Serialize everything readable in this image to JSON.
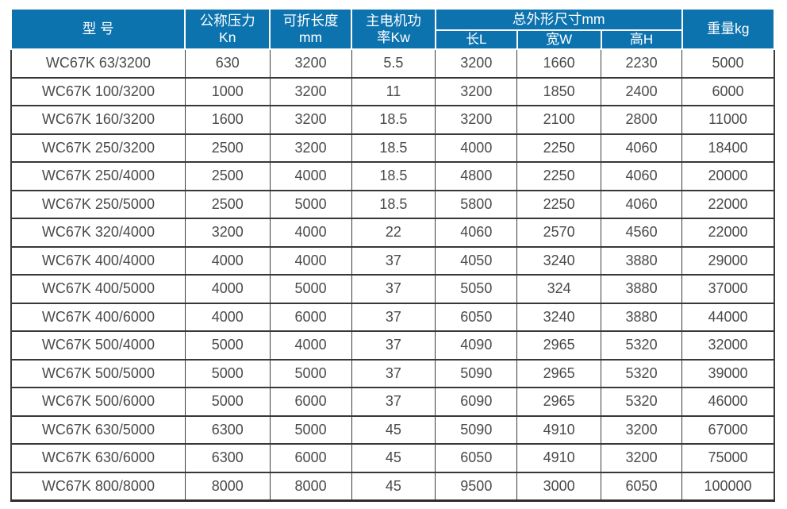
{
  "colors": {
    "header_bg": "#0d73af",
    "header_text": "#ffffff",
    "body_text": "#4a4a4a",
    "border_dark": "#383838"
  },
  "table": {
    "headers": {
      "model": "型 号",
      "pressure_line1": "公称压力",
      "pressure_line2": "Kn",
      "length_line1": "可折长度",
      "length_line2": "mm",
      "power_line1": "主电机功",
      "power_line2": "率Kw",
      "dims_group": "总外形尺寸mm",
      "dim_length": "长L",
      "dim_width": "宽W",
      "dim_height": "高H",
      "weight": "重量kg"
    },
    "rows": [
      [
        "WC67K 63/3200",
        "630",
        "3200",
        "5.5",
        "3200",
        "1660",
        "2230",
        "5000"
      ],
      [
        "WC67K 100/3200",
        "1000",
        "3200",
        "11",
        "3200",
        "1850",
        "2400",
        "6000"
      ],
      [
        "WC67K 160/3200",
        "1600",
        "3200",
        "18.5",
        "3200",
        "2100",
        "2800",
        "11000"
      ],
      [
        "WC67K 250/3200",
        "2500",
        "3200",
        "18.5",
        "4000",
        "2250",
        "4060",
        "18400"
      ],
      [
        "WC67K 250/4000",
        "2500",
        "4000",
        "18.5",
        "4800",
        "2250",
        "4060",
        "20000"
      ],
      [
        "WC67K 250/5000",
        "2500",
        "5000",
        "18.5",
        "5800",
        "2250",
        "4060",
        "22000"
      ],
      [
        "WC67K 320/4000",
        "3200",
        "4000",
        "22",
        "4060",
        "2570",
        "4560",
        "22000"
      ],
      [
        "WC67K 400/4000",
        "4000",
        "4000",
        "37",
        "4050",
        "3240",
        "3880",
        "29000"
      ],
      [
        "WC67K 400/5000",
        "4000",
        "5000",
        "37",
        "5050",
        "324",
        "3880",
        "37000"
      ],
      [
        "WC67K 400/6000",
        "4000",
        "6000",
        "37",
        "6050",
        "3240",
        "3880",
        "44000"
      ],
      [
        "WC67K 500/4000",
        "5000",
        "4000",
        "37",
        "4090",
        "2965",
        "5320",
        "32000"
      ],
      [
        "WC67K 500/5000",
        "5000",
        "5000",
        "37",
        "5090",
        "2965",
        "5320",
        "39000"
      ],
      [
        "WC67K 500/6000",
        "5000",
        "6000",
        "37",
        "6090",
        "2965",
        "5320",
        "46000"
      ],
      [
        "WC67K 630/5000",
        "6300",
        "5000",
        "45",
        "5090",
        "4910",
        "3200",
        "67000"
      ],
      [
        "WC67K 630/6000",
        "6300",
        "6000",
        "45",
        "6050",
        "4910",
        "3200",
        "75000"
      ],
      [
        "WC67K 800/8000",
        "8000",
        "8000",
        "45",
        "9500",
        "3000",
        "6050",
        "100000"
      ]
    ]
  }
}
